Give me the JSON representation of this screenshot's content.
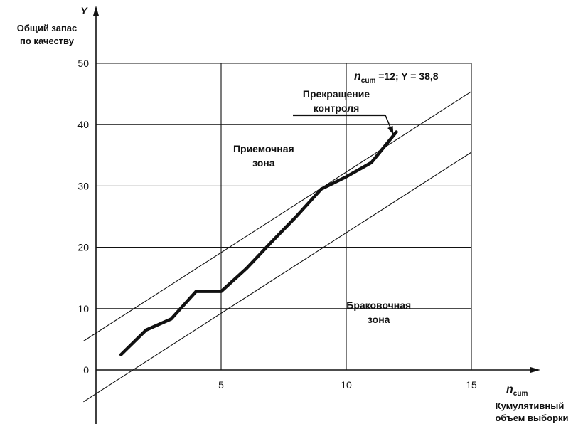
{
  "chart_data": {
    "type": "line",
    "y_axis_symbol": "Y",
    "y_axis_title": [
      "Общий запас",
      "по качеству"
    ],
    "x_axis_symbol": "n",
    "x_axis_symbol_subscript": "cum",
    "x_axis_title": [
      "Кумулятивный",
      "объем выборки"
    ],
    "xlim": [
      0,
      15
    ],
    "ylim": [
      0,
      50
    ],
    "xticks": [
      5,
      10,
      15
    ],
    "yticks": [
      0,
      10,
      20,
      30,
      40,
      50
    ],
    "grid": true,
    "series": [
      {
        "x": [
          1,
          2,
          3,
          4,
          5,
          6,
          7,
          8,
          9,
          10,
          11,
          12
        ],
        "y": [
          2.5,
          6.5,
          8.3,
          12.8,
          12.8,
          16.5,
          20.8,
          25.0,
          29.5,
          31.5,
          33.8,
          38.8
        ]
      }
    ],
    "limit_lines": [
      {
        "name": "acceptance-limit",
        "x1": -0.5,
        "y1": 4.7,
        "x2": 15,
        "y2": 45.4
      },
      {
        "name": "rejection-limit",
        "x1": -0.5,
        "y1": -5.2,
        "x2": 15,
        "y2": 35.5
      }
    ],
    "zone_labels": [
      {
        "lines": [
          "Приемочная",
          "зона"
        ],
        "x": 6.7,
        "y": 35.5
      },
      {
        "lines": [
          "Браковочная",
          "зона"
        ],
        "x": 11.3,
        "y": 10.0
      }
    ],
    "annotations": {
      "stop_label": [
        "Прекращение",
        "контроля"
      ],
      "stop_point": {
        "x": 12,
        "y": 38.8
      },
      "final_point_label": {
        "prefix": "n",
        "subscript": "cum",
        "text": " =12;  Y = 38,8"
      }
    }
  }
}
